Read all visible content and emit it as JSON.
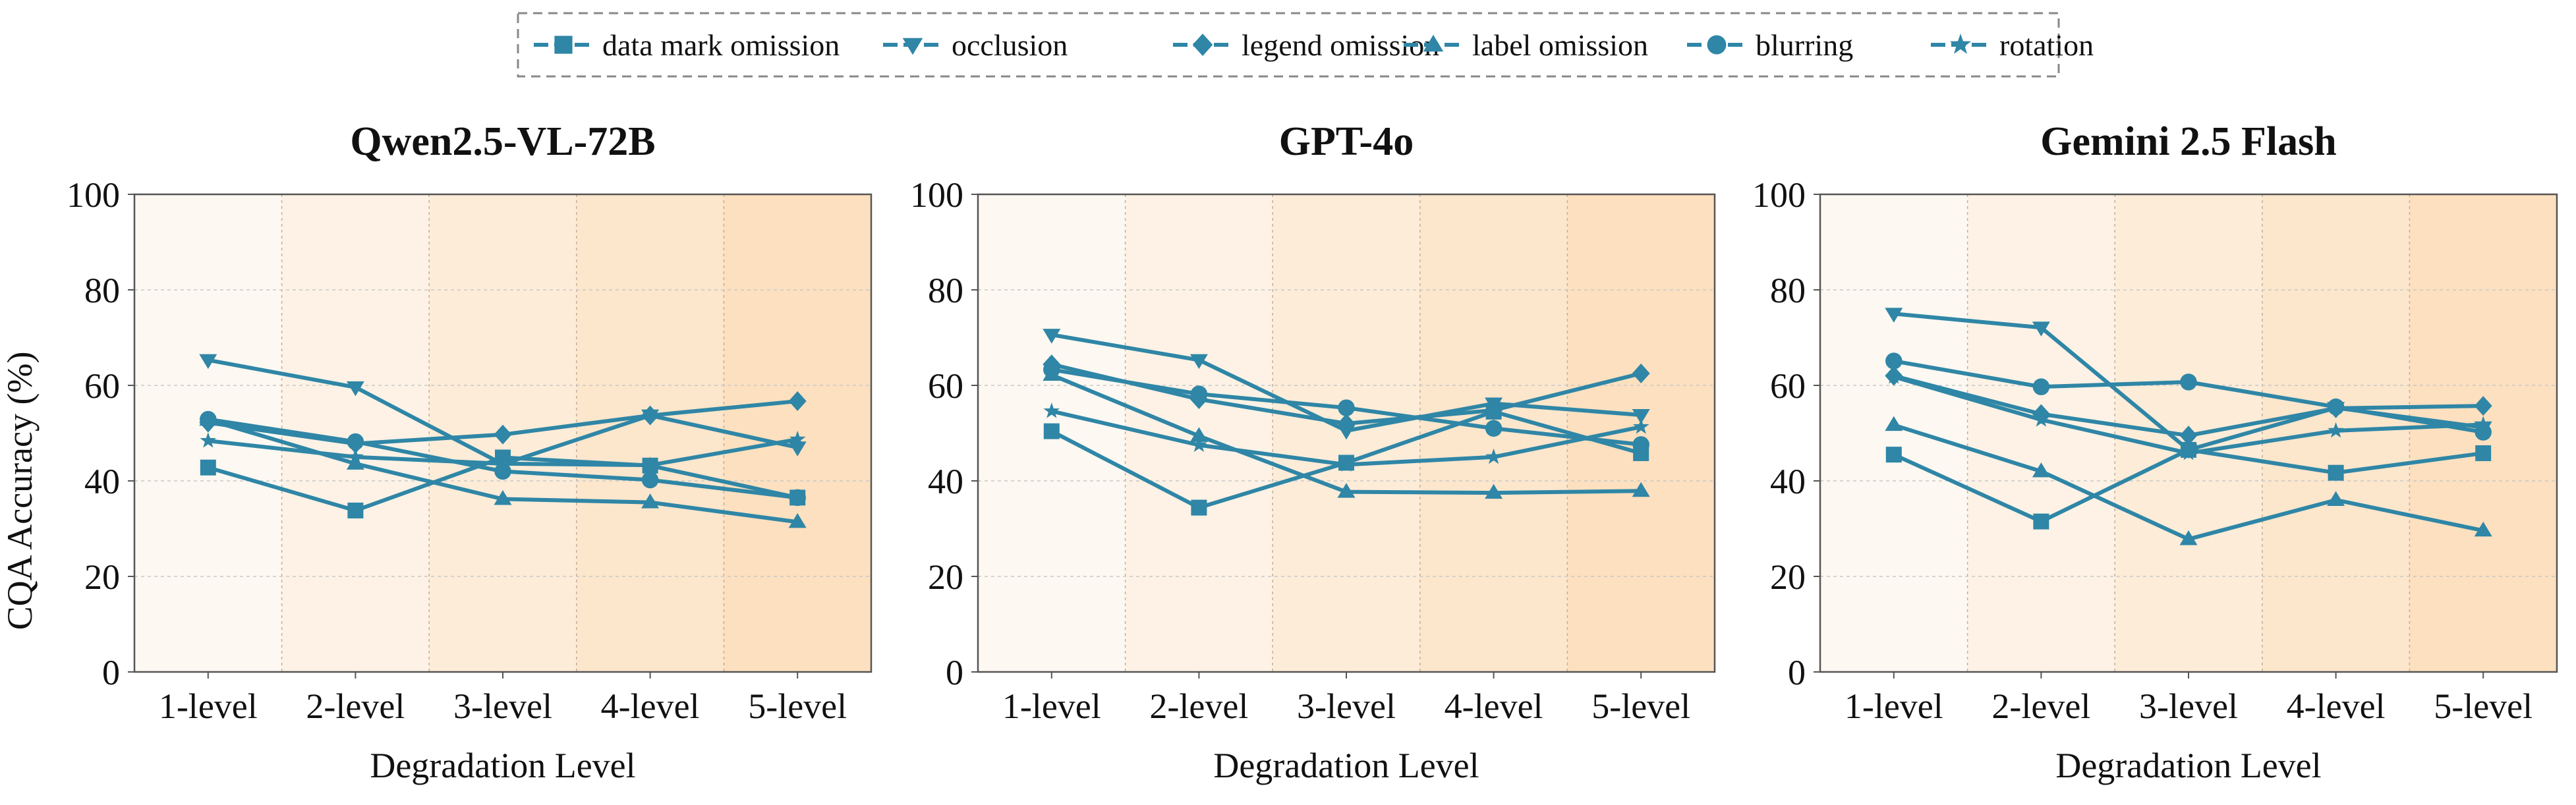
{
  "figure": {
    "ylabel": "CQA Accuracy (%)",
    "xlabel": "Degradation Level"
  },
  "legend": {
    "placement": "top-center",
    "items": [
      {
        "label": "data mark omission",
        "marker": "square"
      },
      {
        "label": "occlusion",
        "marker": "triangle-down"
      },
      {
        "label": "legend omission",
        "marker": "diamond"
      },
      {
        "label": "label omission",
        "marker": "triangle-up"
      },
      {
        "label": "blurring",
        "marker": "circle"
      },
      {
        "label": "rotation",
        "marker": "star"
      }
    ]
  },
  "colors": {
    "series": "#2f86a6",
    "band_start": "#fdf8f1",
    "band_end": "#fce0bf",
    "grid": "#c8c8c8",
    "axis": "#555555"
  },
  "chart_data": [
    {
      "type": "line",
      "title": "Qwen2.5-VL-72B",
      "xlabel": "Degradation Level",
      "ylabel": "CQA Accuracy (%)",
      "categories": [
        "1-level",
        "2-level",
        "3-level",
        "4-level",
        "5-level"
      ],
      "ylim": [
        0,
        100
      ],
      "yticks": [
        0,
        20,
        40,
        60,
        80,
        100
      ],
      "grid": true,
      "series": [
        {
          "name": "data mark omission",
          "marker": "square",
          "values": [
            42.8,
            33.8,
            44.9,
            43.2,
            36.5
          ]
        },
        {
          "name": "occlusion",
          "marker": "triangle-down",
          "values": [
            65.3,
            59.6,
            43.5,
            53.7,
            47.0
          ]
        },
        {
          "name": "legend omission",
          "marker": "diamond",
          "values": [
            52.2,
            47.8,
            49.7,
            53.7,
            56.7
          ]
        },
        {
          "name": "label omission",
          "marker": "triangle-up",
          "values": [
            52.8,
            43.6,
            36.2,
            35.5,
            31.4
          ]
        },
        {
          "name": "blurring",
          "marker": "circle",
          "values": [
            52.9,
            48.2,
            42.0,
            40.2,
            36.5
          ]
        },
        {
          "name": "rotation",
          "marker": "star",
          "values": [
            48.4,
            45.0,
            43.6,
            43.3,
            48.7
          ]
        }
      ]
    },
    {
      "type": "line",
      "title": "GPT-4o",
      "xlabel": "Degradation Level",
      "ylabel": "",
      "categories": [
        "1-level",
        "2-level",
        "3-level",
        "4-level",
        "5-level"
      ],
      "ylim": [
        0,
        100
      ],
      "yticks": [
        0,
        20,
        40,
        60,
        80,
        100
      ],
      "grid": true,
      "series": [
        {
          "name": "data mark omission",
          "marker": "square",
          "values": [
            50.4,
            34.4,
            43.8,
            54.5,
            45.8
          ]
        },
        {
          "name": "occlusion",
          "marker": "triangle-down",
          "values": [
            70.6,
            65.3,
            50.5,
            56.2,
            53.8
          ]
        },
        {
          "name": "legend omission",
          "marker": "diamond",
          "values": [
            64.4,
            57.1,
            52.0,
            54.8,
            62.5
          ]
        },
        {
          "name": "label omission",
          "marker": "triangle-up",
          "values": [
            62.2,
            49.4,
            37.7,
            37.5,
            37.9
          ]
        },
        {
          "name": "blurring",
          "marker": "circle",
          "values": [
            63.3,
            58.2,
            55.3,
            51.0,
            47.6
          ]
        },
        {
          "name": "rotation",
          "marker": "star",
          "values": [
            54.6,
            47.5,
            43.4,
            45.0,
            51.3
          ]
        }
      ]
    },
    {
      "type": "line",
      "title": "Gemini 2.5 Flash",
      "xlabel": "Degradation Level",
      "ylabel": "",
      "categories": [
        "1-level",
        "2-level",
        "3-level",
        "4-level",
        "5-level"
      ],
      "ylim": [
        0,
        100
      ],
      "yticks": [
        0,
        20,
        40,
        60,
        80,
        100
      ],
      "grid": true,
      "series": [
        {
          "name": "data mark omission",
          "marker": "square",
          "values": [
            45.5,
            31.5,
            46.5,
            41.7,
            45.8
          ]
        },
        {
          "name": "occlusion",
          "marker": "triangle-down",
          "values": [
            75.0,
            72.1,
            46.5,
            55.3,
            51.2
          ]
        },
        {
          "name": "legend omission",
          "marker": "diamond",
          "values": [
            62.0,
            54.0,
            49.5,
            55.2,
            55.7
          ]
        },
        {
          "name": "label omission",
          "marker": "triangle-up",
          "values": [
            51.7,
            42.0,
            27.8,
            36.0,
            29.6
          ]
        },
        {
          "name": "blurring",
          "marker": "circle",
          "values": [
            65.1,
            59.7,
            60.7,
            55.5,
            50.2
          ]
        },
        {
          "name": "rotation",
          "marker": "star",
          "values": [
            61.8,
            52.8,
            45.8,
            50.5,
            51.8
          ]
        }
      ]
    }
  ]
}
